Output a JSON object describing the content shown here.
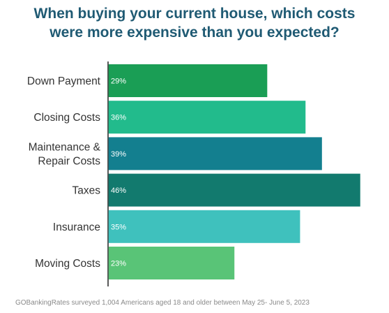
{
  "title_lines": [
    "When buying your current house, which costs",
    "were more expensive than you expected?"
  ],
  "footnote": "GOBankingRates surveyed 1,004 Americans aged 18 and older between May 25- June 5, 2023",
  "chart_data": {
    "type": "bar",
    "orientation": "horizontal",
    "categories": [
      [
        "Down Payment"
      ],
      [
        "Closing Costs"
      ],
      [
        "Maintenance &",
        "Repair Costs"
      ],
      [
        "Taxes"
      ],
      [
        "Insurance"
      ],
      [
        "Moving Costs"
      ]
    ],
    "values": [
      29,
      36,
      39,
      46,
      35,
      23
    ],
    "value_labels": [
      "29%",
      "36%",
      "39%",
      "46%",
      "35%",
      "23%"
    ],
    "colors": [
      "#1a9e55",
      "#22bb8c",
      "#137f8f",
      "#127a6e",
      "#3fc1bd",
      "#59c477"
    ],
    "xlim": [
      0,
      46
    ],
    "grid": false
  }
}
